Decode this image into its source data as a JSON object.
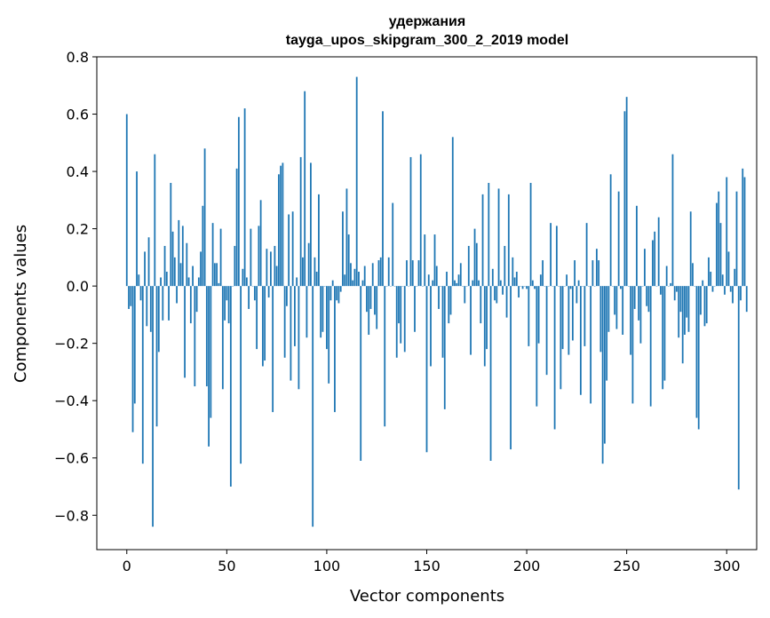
{
  "chart_data": {
    "type": "bar",
    "title_lines": [
      "удержания",
      "tayga_upos_skipgram_300_2_2019 model"
    ],
    "xlabel": "Vector components",
    "ylabel": "Components values",
    "xlim": [
      -15,
      315
    ],
    "ylim": [
      -0.92,
      0.8
    ],
    "xticks": [
      0,
      50,
      100,
      150,
      200,
      250,
      300
    ],
    "xtick_labels": [
      "0",
      "50",
      "100",
      "150",
      "200",
      "250",
      "300"
    ],
    "yticks": [
      0.8,
      0.6,
      0.4,
      0.2,
      0.0,
      -0.2,
      -0.4,
      -0.6,
      -0.8
    ],
    "ytick_labels": [
      "0.8",
      "0.6",
      "0.4",
      "0.2",
      "0.0",
      "−0.2",
      "−0.4",
      "−0.6",
      "−0.8"
    ],
    "bar_color": "#1f77b4",
    "grid": false,
    "series": [
      {
        "name": "components",
        "values": [
          0.6,
          -0.08,
          -0.07,
          -0.51,
          -0.41,
          0.4,
          0.04,
          -0.05,
          -0.62,
          0.12,
          -0.14,
          0.17,
          -0.16,
          -0.84,
          0.46,
          -0.49,
          -0.23,
          0.03,
          -0.12,
          0.14,
          0.05,
          -0.12,
          0.36,
          0.19,
          0.1,
          -0.06,
          0.23,
          0.08,
          0.21,
          -0.32,
          0.15,
          0.03,
          -0.13,
          0.07,
          -0.35,
          -0.09,
          0.03,
          0.12,
          0.28,
          0.48,
          -0.35,
          -0.56,
          -0.46,
          0.22,
          0.08,
          0.08,
          0.01,
          0.2,
          -0.36,
          -0.12,
          -0.05,
          -0.13,
          -0.7,
          0.0,
          0.14,
          0.41,
          0.59,
          -0.62,
          0.06,
          0.62,
          0.03,
          -0.08,
          0.2,
          0.0,
          -0.05,
          -0.22,
          0.21,
          0.3,
          -0.28,
          -0.26,
          0.13,
          -0.04,
          0.12,
          -0.44,
          0.14,
          0.07,
          0.39,
          0.42,
          0.43,
          -0.25,
          -0.07,
          0.25,
          -0.33,
          0.26,
          -0.21,
          0.03,
          -0.36,
          0.45,
          0.1,
          0.68,
          -0.18,
          0.15,
          0.43,
          -0.84,
          0.1,
          0.05,
          0.32,
          -0.18,
          -0.16,
          0.0,
          -0.22,
          -0.34,
          -0.05,
          0.02,
          -0.44,
          -0.05,
          -0.06,
          -0.02,
          0.26,
          0.04,
          0.34,
          0.18,
          0.08,
          0.02,
          0.06,
          0.73,
          0.05,
          -0.61,
          0.02,
          0.07,
          -0.09,
          -0.17,
          -0.08,
          0.08,
          -0.1,
          -0.15,
          0.09,
          0.1,
          0.61,
          -0.49,
          0.0,
          0.1,
          0.0,
          0.29,
          0.0,
          -0.25,
          -0.13,
          -0.2,
          0.0,
          -0.23,
          0.09,
          0.0,
          0.45,
          0.09,
          -0.16,
          0.0,
          0.09,
          0.46,
          0.0,
          0.18,
          -0.58,
          0.04,
          -0.28,
          0.02,
          0.18,
          0.07,
          -0.08,
          0.0,
          -0.25,
          -0.43,
          0.05,
          -0.13,
          -0.1,
          0.52,
          0.02,
          0.01,
          0.04,
          0.08,
          0.0,
          -0.06,
          0.0,
          0.14,
          -0.24,
          0.02,
          0.2,
          0.15,
          0.02,
          -0.13,
          0.32,
          -0.28,
          -0.22,
          0.36,
          -0.61,
          0.06,
          -0.05,
          -0.06,
          0.34,
          0.02,
          -0.03,
          0.14,
          -0.11,
          0.32,
          -0.57,
          0.1,
          0.03,
          0.05,
          -0.04,
          0.0,
          -0.01,
          0.0,
          -0.01,
          -0.21,
          0.36,
          0.02,
          -0.01,
          -0.42,
          -0.2,
          0.04,
          0.09,
          0.0,
          -0.31,
          0.0,
          0.22,
          0.0,
          -0.5,
          0.21,
          0.0,
          -0.36,
          -0.22,
          0.0,
          0.04,
          -0.24,
          -0.01,
          -0.19,
          0.09,
          -0.06,
          0.02,
          -0.38,
          0.0,
          -0.21,
          0.22,
          0.0,
          -0.41,
          0.09,
          0.0,
          0.13,
          0.09,
          -0.23,
          -0.62,
          -0.55,
          -0.33,
          -0.16,
          0.39,
          0.0,
          -0.1,
          -0.15,
          0.33,
          -0.01,
          -0.17,
          0.61,
          0.66,
          0.0,
          -0.24,
          -0.41,
          -0.08,
          0.28,
          -0.12,
          -0.2,
          0.0,
          0.13,
          -0.07,
          -0.09,
          -0.42,
          0.16,
          0.19,
          0.0,
          0.24,
          -0.03,
          -0.36,
          -0.33,
          0.07,
          0.0,
          0.01,
          0.46,
          -0.05,
          -0.02,
          -0.18,
          -0.09,
          -0.27,
          -0.17,
          -0.11,
          -0.16,
          0.26,
          0.08,
          0.0,
          -0.46,
          -0.5,
          -0.1,
          0.02,
          -0.14,
          -0.13,
          0.1,
          0.05,
          -0.02,
          0.0,
          0.29,
          0.33,
          0.22,
          0.04,
          -0.03,
          0.38,
          0.12,
          -0.02,
          -0.06,
          0.06,
          0.33,
          -0.71,
          -0.05,
          0.41,
          0.38,
          -0.09
        ]
      }
    ]
  }
}
